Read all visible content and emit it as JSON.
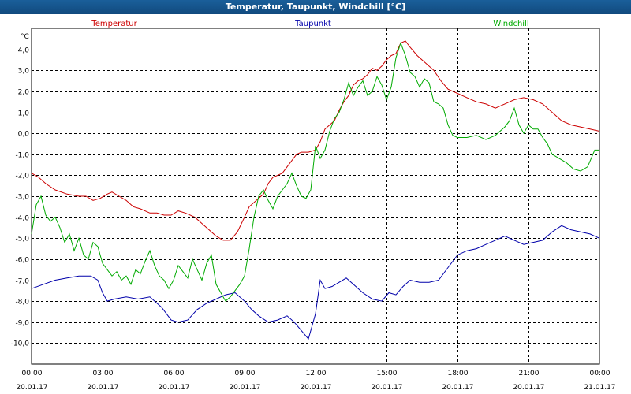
{
  "title": "Temperatur, Taupunkt, Windchill [°C]",
  "chart_data": {
    "type": "line",
    "title": "Temperatur, Taupunkt, Windchill [°C]",
    "ylabel": "°C",
    "xlabel": "",
    "xlim": [
      0,
      24
    ],
    "ylim": [
      -11,
      5
    ],
    "grid": true,
    "legend_position": "top",
    "y_ticks": [
      {
        "value": 4,
        "label": "4,0"
      },
      {
        "value": 3,
        "label": "3,0"
      },
      {
        "value": 2,
        "label": "2,0"
      },
      {
        "value": 1,
        "label": "1,0"
      },
      {
        "value": 0,
        "label": "0,0"
      },
      {
        "value": -1,
        "label": "-1,0"
      },
      {
        "value": -2,
        "label": "-2,0"
      },
      {
        "value": -3,
        "label": "-3,0"
      },
      {
        "value": -4,
        "label": "-4,0"
      },
      {
        "value": -5,
        "label": "-5,0"
      },
      {
        "value": -6,
        "label": "-6,0"
      },
      {
        "value": -7,
        "label": "-7,0"
      },
      {
        "value": -8,
        "label": "-8,0"
      },
      {
        "value": -9,
        "label": "-9,0"
      },
      {
        "value": -10,
        "label": "-10,0"
      }
    ],
    "x_ticks": [
      {
        "value": 0,
        "time": "00:00",
        "date": "20.01.17"
      },
      {
        "value": 3,
        "time": "03:00",
        "date": "20.01.17"
      },
      {
        "value": 6,
        "time": "06:00",
        "date": "20.01.17"
      },
      {
        "value": 9,
        "time": "09:00",
        "date": "20.01.17"
      },
      {
        "value": 12,
        "time": "12:00",
        "date": "20.01.17"
      },
      {
        "value": 15,
        "time": "15:00",
        "date": "20.01.17"
      },
      {
        "value": 18,
        "time": "18:00",
        "date": "20.01.17"
      },
      {
        "value": 21,
        "time": "21:00",
        "date": "20.01.17"
      },
      {
        "value": 24,
        "time": "00:00",
        "date": "21.01.17"
      }
    ],
    "series": [
      {
        "name": "Temperatur",
        "color": "#cc0000",
        "points": [
          [
            0,
            -1.9
          ],
          [
            0.3,
            -2.1
          ],
          [
            0.6,
            -2.4
          ],
          [
            1.0,
            -2.7
          ],
          [
            1.5,
            -2.9
          ],
          [
            2.0,
            -3.0
          ],
          [
            2.3,
            -3.0
          ],
          [
            2.6,
            -3.2
          ],
          [
            2.9,
            -3.1
          ],
          [
            3.2,
            -2.9
          ],
          [
            3.4,
            -2.8
          ],
          [
            3.7,
            -3.0
          ],
          [
            4.0,
            -3.2
          ],
          [
            4.3,
            -3.5
          ],
          [
            4.6,
            -3.6
          ],
          [
            5.0,
            -3.8
          ],
          [
            5.3,
            -3.8
          ],
          [
            5.6,
            -3.9
          ],
          [
            5.9,
            -3.9
          ],
          [
            6.2,
            -3.7
          ],
          [
            6.5,
            -3.8
          ],
          [
            6.9,
            -4.0
          ],
          [
            7.2,
            -4.3
          ],
          [
            7.5,
            -4.6
          ],
          [
            7.8,
            -4.9
          ],
          [
            8.1,
            -5.1
          ],
          [
            8.4,
            -5.1
          ],
          [
            8.7,
            -4.7
          ],
          [
            9.0,
            -4.0
          ],
          [
            9.2,
            -3.5
          ],
          [
            9.5,
            -3.2
          ],
          [
            9.8,
            -2.9
          ],
          [
            10.0,
            -2.4
          ],
          [
            10.2,
            -2.1
          ],
          [
            10.4,
            -2.0
          ],
          [
            10.6,
            -1.9
          ],
          [
            10.8,
            -1.6
          ],
          [
            11.0,
            -1.3
          ],
          [
            11.2,
            -1.0
          ],
          [
            11.4,
            -0.9
          ],
          [
            11.7,
            -0.9
          ],
          [
            12.0,
            -0.8
          ],
          [
            12.2,
            -0.4
          ],
          [
            12.4,
            0.2
          ],
          [
            12.6,
            0.4
          ],
          [
            12.8,
            0.6
          ],
          [
            13.0,
            1.1
          ],
          [
            13.2,
            1.5
          ],
          [
            13.4,
            1.8
          ],
          [
            13.6,
            2.3
          ],
          [
            13.8,
            2.5
          ],
          [
            14.0,
            2.6
          ],
          [
            14.2,
            2.8
          ],
          [
            14.4,
            3.1
          ],
          [
            14.6,
            3.0
          ],
          [
            14.8,
            3.2
          ],
          [
            15.0,
            3.5
          ],
          [
            15.2,
            3.7
          ],
          [
            15.4,
            3.8
          ],
          [
            15.6,
            4.3
          ],
          [
            15.8,
            4.4
          ],
          [
            16.0,
            4.1
          ],
          [
            16.3,
            3.7
          ],
          [
            16.6,
            3.4
          ],
          [
            17.0,
            3.0
          ],
          [
            17.3,
            2.5
          ],
          [
            17.6,
            2.1
          ],
          [
            18.0,
            1.9
          ],
          [
            18.4,
            1.7
          ],
          [
            18.8,
            1.5
          ],
          [
            19.2,
            1.4
          ],
          [
            19.6,
            1.2
          ],
          [
            20.0,
            1.4
          ],
          [
            20.4,
            1.6
          ],
          [
            20.8,
            1.7
          ],
          [
            21.2,
            1.6
          ],
          [
            21.6,
            1.4
          ],
          [
            22.0,
            1.0
          ],
          [
            22.4,
            0.6
          ],
          [
            22.8,
            0.4
          ],
          [
            23.2,
            0.3
          ],
          [
            23.6,
            0.2
          ],
          [
            24.0,
            0.1
          ]
        ]
      },
      {
        "name": "Taupunkt",
        "color": "#0000aa",
        "points": [
          [
            0,
            -7.4
          ],
          [
            0.5,
            -7.2
          ],
          [
            1.0,
            -7.0
          ],
          [
            1.5,
            -6.9
          ],
          [
            2.0,
            -6.8
          ],
          [
            2.5,
            -6.8
          ],
          [
            2.8,
            -7.0
          ],
          [
            3.0,
            -7.6
          ],
          [
            3.2,
            -8.0
          ],
          [
            3.5,
            -7.9
          ],
          [
            4.0,
            -7.8
          ],
          [
            4.5,
            -7.9
          ],
          [
            5.0,
            -7.8
          ],
          [
            5.5,
            -8.3
          ],
          [
            5.9,
            -8.9
          ],
          [
            6.2,
            -9.0
          ],
          [
            6.6,
            -8.9
          ],
          [
            7.0,
            -8.4
          ],
          [
            7.4,
            -8.1
          ],
          [
            7.8,
            -7.9
          ],
          [
            8.2,
            -7.7
          ],
          [
            8.6,
            -7.6
          ],
          [
            9.0,
            -8.0
          ],
          [
            9.3,
            -8.4
          ],
          [
            9.6,
            -8.7
          ],
          [
            10.0,
            -9.0
          ],
          [
            10.4,
            -8.9
          ],
          [
            10.8,
            -8.7
          ],
          [
            11.1,
            -9.0
          ],
          [
            11.4,
            -9.4
          ],
          [
            11.7,
            -9.8
          ],
          [
            12.0,
            -8.6
          ],
          [
            12.2,
            -7.0
          ],
          [
            12.4,
            -7.4
          ],
          [
            12.7,
            -7.3
          ],
          [
            13.0,
            -7.1
          ],
          [
            13.3,
            -6.9
          ],
          [
            13.6,
            -7.2
          ],
          [
            14.0,
            -7.6
          ],
          [
            14.4,
            -7.9
          ],
          [
            14.8,
            -8.0
          ],
          [
            15.1,
            -7.6
          ],
          [
            15.4,
            -7.7
          ],
          [
            15.7,
            -7.3
          ],
          [
            16.0,
            -7.0
          ],
          [
            16.4,
            -7.1
          ],
          [
            16.8,
            -7.1
          ],
          [
            17.2,
            -7.0
          ],
          [
            17.6,
            -6.4
          ],
          [
            18.0,
            -5.8
          ],
          [
            18.4,
            -5.6
          ],
          [
            18.8,
            -5.5
          ],
          [
            19.2,
            -5.3
          ],
          [
            19.6,
            -5.1
          ],
          [
            20.0,
            -4.9
          ],
          [
            20.4,
            -5.1
          ],
          [
            20.8,
            -5.3
          ],
          [
            21.2,
            -5.2
          ],
          [
            21.6,
            -5.1
          ],
          [
            22.0,
            -4.7
          ],
          [
            22.4,
            -4.4
          ],
          [
            22.8,
            -4.6
          ],
          [
            23.2,
            -4.7
          ],
          [
            23.6,
            -4.8
          ],
          [
            24.0,
            -5.0
          ]
        ]
      },
      {
        "name": "Windchill",
        "color": "#00aa00",
        "points": [
          [
            0,
            -4.8
          ],
          [
            0.2,
            -3.4
          ],
          [
            0.4,
            -3.0
          ],
          [
            0.6,
            -3.9
          ],
          [
            0.8,
            -4.2
          ],
          [
            1.0,
            -4.0
          ],
          [
            1.2,
            -4.5
          ],
          [
            1.4,
            -5.2
          ],
          [
            1.6,
            -4.8
          ],
          [
            1.8,
            -5.6
          ],
          [
            2.0,
            -5.0
          ],
          [
            2.2,
            -5.8
          ],
          [
            2.4,
            -6.0
          ],
          [
            2.6,
            -5.2
          ],
          [
            2.8,
            -5.4
          ],
          [
            3.0,
            -6.2
          ],
          [
            3.2,
            -6.5
          ],
          [
            3.4,
            -6.8
          ],
          [
            3.6,
            -6.6
          ],
          [
            3.8,
            -7.0
          ],
          [
            4.0,
            -6.8
          ],
          [
            4.2,
            -7.2
          ],
          [
            4.4,
            -6.5
          ],
          [
            4.6,
            -6.7
          ],
          [
            4.8,
            -6.1
          ],
          [
            5.0,
            -5.6
          ],
          [
            5.2,
            -6.3
          ],
          [
            5.4,
            -6.8
          ],
          [
            5.6,
            -7.0
          ],
          [
            5.8,
            -7.4
          ],
          [
            6.0,
            -7.0
          ],
          [
            6.2,
            -6.3
          ],
          [
            6.4,
            -6.6
          ],
          [
            6.6,
            -6.9
          ],
          [
            6.8,
            -6.0
          ],
          [
            7.0,
            -6.5
          ],
          [
            7.2,
            -7.0
          ],
          [
            7.4,
            -6.2
          ],
          [
            7.6,
            -5.8
          ],
          [
            7.8,
            -7.2
          ],
          [
            8.0,
            -7.6
          ],
          [
            8.2,
            -8.0
          ],
          [
            8.4,
            -7.8
          ],
          [
            8.6,
            -7.5
          ],
          [
            8.8,
            -7.2
          ],
          [
            9.0,
            -6.8
          ],
          [
            9.2,
            -5.5
          ],
          [
            9.4,
            -4.0
          ],
          [
            9.6,
            -3.0
          ],
          [
            9.8,
            -2.7
          ],
          [
            10.0,
            -3.2
          ],
          [
            10.2,
            -3.6
          ],
          [
            10.4,
            -3.0
          ],
          [
            10.6,
            -2.7
          ],
          [
            10.8,
            -2.4
          ],
          [
            11.0,
            -1.9
          ],
          [
            11.2,
            -2.5
          ],
          [
            11.4,
            -3.0
          ],
          [
            11.6,
            -3.1
          ],
          [
            11.8,
            -2.7
          ],
          [
            12.0,
            -0.6
          ],
          [
            12.2,
            -1.2
          ],
          [
            12.4,
            -0.8
          ],
          [
            12.6,
            0.1
          ],
          [
            12.8,
            0.7
          ],
          [
            13.0,
            1.0
          ],
          [
            13.2,
            1.6
          ],
          [
            13.4,
            2.4
          ],
          [
            13.6,
            1.8
          ],
          [
            13.8,
            2.2
          ],
          [
            14.0,
            2.5
          ],
          [
            14.2,
            1.8
          ],
          [
            14.4,
            2.0
          ],
          [
            14.6,
            2.7
          ],
          [
            14.8,
            2.3
          ],
          [
            15.0,
            1.6
          ],
          [
            15.2,
            2.2
          ],
          [
            15.4,
            3.6
          ],
          [
            15.6,
            4.3
          ],
          [
            15.8,
            3.7
          ],
          [
            16.0,
            2.9
          ],
          [
            16.2,
            2.7
          ],
          [
            16.4,
            2.2
          ],
          [
            16.6,
            2.6
          ],
          [
            16.8,
            2.4
          ],
          [
            17.0,
            1.5
          ],
          [
            17.2,
            1.4
          ],
          [
            17.4,
            1.2
          ],
          [
            17.6,
            0.4
          ],
          [
            17.8,
            -0.1
          ],
          [
            18.0,
            -0.2
          ],
          [
            18.4,
            -0.2
          ],
          [
            18.8,
            -0.1
          ],
          [
            19.2,
            -0.3
          ],
          [
            19.6,
            -0.1
          ],
          [
            20.0,
            0.3
          ],
          [
            20.2,
            0.6
          ],
          [
            20.4,
            1.2
          ],
          [
            20.6,
            0.4
          ],
          [
            20.8,
            0.0
          ],
          [
            21.0,
            0.4
          ],
          [
            21.2,
            0.2
          ],
          [
            21.4,
            0.2
          ],
          [
            21.6,
            -0.2
          ],
          [
            21.8,
            -0.5
          ],
          [
            22.0,
            -1.0
          ],
          [
            22.3,
            -1.2
          ],
          [
            22.6,
            -1.4
          ],
          [
            22.9,
            -1.7
          ],
          [
            23.2,
            -1.8
          ],
          [
            23.5,
            -1.6
          ],
          [
            23.8,
            -0.8
          ],
          [
            24.0,
            -0.8
          ]
        ]
      }
    ]
  }
}
